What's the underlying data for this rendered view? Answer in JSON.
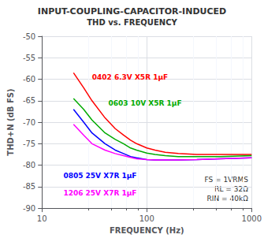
{
  "chart_data": {
    "type": "line",
    "title": "INPUT-COUPLING-CAPACITOR-INDUCED",
    "subtitle": "THD vs. FREQUENCY",
    "xlabel": "FREQUENCY (Hz)",
    "ylabel": "THD+N (dB FS)",
    "log": "x",
    "grid": true,
    "xlim": [
      10,
      1000
    ],
    "xticks": [
      10,
      100,
      1000
    ],
    "ylim": [
      -90,
      -50
    ],
    "yticks": [
      -90,
      -85,
      -80,
      -75,
      -70,
      -65,
      -60,
      -55,
      -50
    ],
    "annotation": "FS = 1VRMS\nRL = 32Ω\nRIN = 40kΩ",
    "x": [
      20,
      25,
      30,
      40,
      50,
      60,
      70,
      80,
      100,
      120,
      150,
      200,
      300,
      500,
      1000
    ],
    "series": [
      {
        "name": "0402 6.3V X5R 1μF",
        "color": "#ff0000",
        "values": [
          -58.5,
          -62,
          -65,
          -69,
          -71.5,
          -73,
          -74.2,
          -75,
          -76,
          -76.5,
          -77,
          -77.3,
          -77.5,
          -77.5,
          -77.5
        ]
      },
      {
        "name": "0603 10V X5R 1μF",
        "color": "#00aa00",
        "values": [
          -64.5,
          -67,
          -69.5,
          -72.5,
          -74,
          -75,
          -76,
          -76.5,
          -77.2,
          -77.5,
          -77.8,
          -78,
          -78,
          -78,
          -77.8
        ]
      },
      {
        "name": "0805 25V X7R 1μF",
        "color": "#0000ff",
        "values": [
          -67,
          -70,
          -72.5,
          -75,
          -76.5,
          -77.3,
          -78,
          -78.3,
          -78.7,
          -78.8,
          -78.8,
          -78.8,
          -78.7,
          -78.5,
          -78.3
        ]
      },
      {
        "name": "1206 25V X7R 1μF",
        "color": "#ff00ff",
        "values": [
          -70.5,
          -73,
          -75,
          -76.5,
          -77.3,
          -77.8,
          -78.2,
          -78.5,
          -78.7,
          -78.8,
          -78.8,
          -78.8,
          -78.7,
          -78.5,
          -78.3
        ]
      }
    ]
  }
}
